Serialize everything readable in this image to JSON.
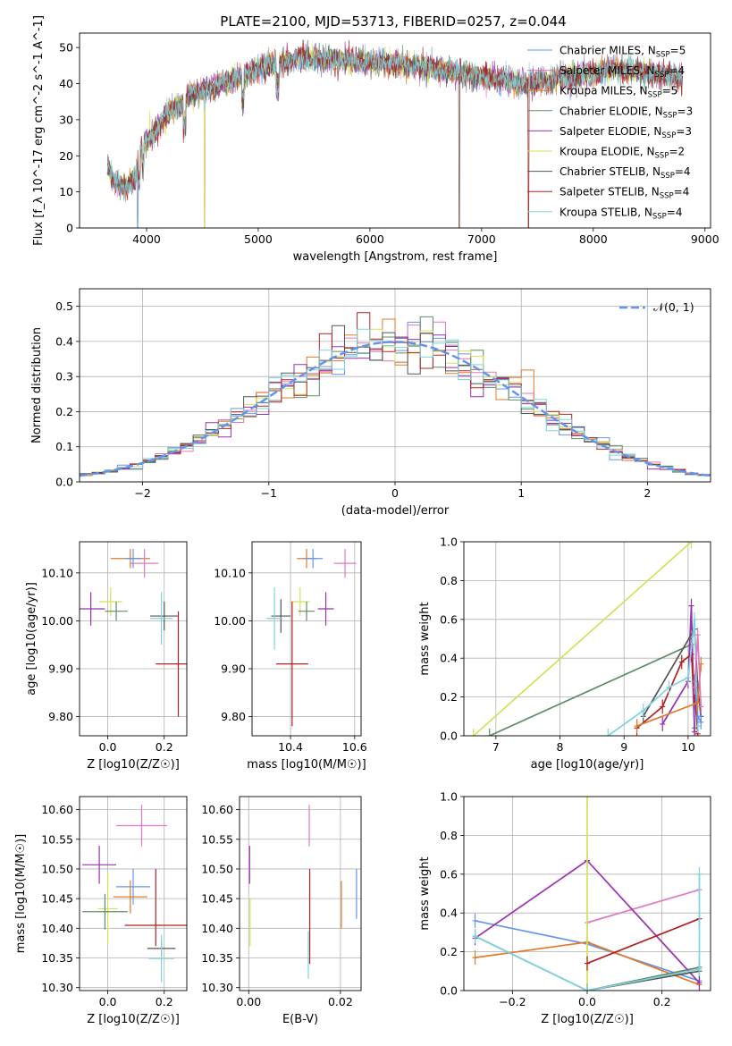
{
  "title": "PLATE=2100, MJD=53713, FIBERID=0257, z=0.044",
  "chart_data": [
    {
      "type": "line",
      "name": "spectrum",
      "xlabel": "wavelength [Angstrom, rest frame]",
      "ylabel": "Flux [f_λ 10^-17 erg cm^-2 s^-1 A^-1]",
      "xlim": [
        3400,
        9050
      ],
      "ylim": [
        0,
        54
      ],
      "xticks": [
        4000,
        5000,
        6000,
        7000,
        8000,
        9000
      ],
      "yticks": [
        0,
        10,
        20,
        30,
        40,
        50
      ],
      "legend_position": "top-right",
      "continuum": {
        "x": [
          3650,
          3700,
          3800,
          3900,
          3950,
          4000,
          4100,
          4200,
          4300,
          4400,
          4500,
          4700,
          5000,
          5200,
          5400,
          5600,
          6000,
          6400,
          6800,
          7000,
          7400,
          7800,
          8200,
          8600,
          8800
        ],
        "y": [
          18,
          13,
          11,
          14,
          22,
          24,
          28,
          32,
          34,
          37,
          38,
          40,
          44,
          46,
          47,
          46.5,
          46,
          45,
          43,
          42,
          40,
          42,
          44,
          42.5,
          41.5
        ]
      },
      "series": [
        {
          "name": "Chabrier MILES, N_SSP=5",
          "color": "#6495ed"
        },
        {
          "name": "Salpeter MILES, N_SSP=4",
          "color": "#e377c2"
        },
        {
          "name": "Kroupa MILES, N_SSP=5",
          "color": "#e07a2a"
        },
        {
          "name": "Chabrier ELODIE, N_SSP=3",
          "color": "#5e8c69"
        },
        {
          "name": "Salpeter ELODIE, N_SSP=3",
          "color": "#9b30b0"
        },
        {
          "name": "Kroupa ELODIE, N_SSP=2",
          "color": "#d4e157"
        },
        {
          "name": "Chabrier STELIB, N_SSP=4",
          "color": "#555555"
        },
        {
          "name": "Salpeter STELIB, N_SSP=4",
          "color": "#b22222"
        },
        {
          "name": "Kroupa STELIB, N_SSP=4",
          "color": "#7fd3dc"
        }
      ],
      "vertical_drops": [
        3920,
        4520,
        6800,
        7420
      ]
    },
    {
      "type": "histogram",
      "name": "residuals",
      "xlabel": "(data-model)/error",
      "ylabel": "Normed distribution",
      "xlim": [
        -2.5,
        2.5
      ],
      "ylim": [
        0,
        0.55
      ],
      "xticks": [
        -2,
        -1,
        0,
        1,
        2
      ],
      "yticks": [
        0,
        0.1,
        0.2,
        0.3,
        0.4,
        0.5
      ],
      "grid": true,
      "reference_curve": {
        "label": "𝒩(0, 1)",
        "color": "#6495ed",
        "style": "dashed"
      },
      "bin_width": 0.1
    },
    {
      "type": "scatter",
      "name": "age_vs_Z",
      "xlabel": "Z [log10(Z/Z☉)]",
      "ylabel": "age  [log10(age/yr)]",
      "xlim": [
        -0.1,
        0.28
      ],
      "ylim": [
        9.76,
        10.165
      ],
      "xticks": [
        0.0,
        0.2
      ],
      "yticks": [
        9.8,
        9.9,
        10.0,
        10.1
      ],
      "points": [
        {
          "x": 0.08,
          "y": 10.13,
          "xerr": 0.07,
          "yerr": 0.02,
          "color": "#e07a2a"
        },
        {
          "x": 0.13,
          "y": 10.12,
          "xerr": 0.05,
          "yerr": 0.03,
          "color": "#e377c2"
        },
        {
          "x": 0.09,
          "y": 10.13,
          "xerr": 0.03,
          "yerr": 0.02,
          "color": "#6495ed"
        },
        {
          "x": -0.06,
          "y": 10.025,
          "xerr": 0.05,
          "yerr": 0.035,
          "color": "#9b30b0"
        },
        {
          "x": 0.01,
          "y": 10.04,
          "xerr": 0.04,
          "yerr": 0.03,
          "color": "#d4e157"
        },
        {
          "x": 0.03,
          "y": 10.02,
          "xerr": 0.04,
          "yerr": 0.02,
          "color": "#5e8c69"
        },
        {
          "x": 0.2,
          "y": 10.01,
          "xerr": 0.05,
          "yerr": 0.03,
          "color": "#555555"
        },
        {
          "x": 0.19,
          "y": 10.005,
          "xerr": 0.04,
          "yerr": 0.055,
          "color": "#7fd3dc"
        },
        {
          "x": 0.25,
          "y": 9.91,
          "xerr": 0.08,
          "yerr": 0.11,
          "color": "#b22222"
        }
      ]
    },
    {
      "type": "scatter",
      "name": "age_vs_mass",
      "xlabel": "mass [log10(M/M☉)]",
      "ylabel": "",
      "xlim": [
        10.28,
        10.62
      ],
      "ylim": [
        9.76,
        10.165
      ],
      "xticks": [
        10.4,
        10.6
      ],
      "yticks": [
        9.8,
        9.9,
        10.0,
        10.1
      ],
      "points": [
        {
          "x": 10.45,
          "y": 10.13,
          "xerr": 0.03,
          "yerr": 0.02,
          "color": "#e07a2a"
        },
        {
          "x": 10.57,
          "y": 10.12,
          "xerr": 0.035,
          "yerr": 0.03,
          "color": "#e377c2"
        },
        {
          "x": 10.47,
          "y": 10.13,
          "xerr": 0.03,
          "yerr": 0.02,
          "color": "#6495ed"
        },
        {
          "x": 10.51,
          "y": 10.025,
          "xerr": 0.025,
          "yerr": 0.035,
          "color": "#9b30b0"
        },
        {
          "x": 10.43,
          "y": 10.04,
          "xerr": 0.03,
          "yerr": 0.03,
          "color": "#d4e157"
        },
        {
          "x": 10.45,
          "y": 10.02,
          "xerr": 0.025,
          "yerr": 0.02,
          "color": "#5e8c69"
        },
        {
          "x": 10.37,
          "y": 10.01,
          "xerr": 0.03,
          "yerr": 0.035,
          "color": "#555555"
        },
        {
          "x": 10.35,
          "y": 10.005,
          "xerr": 0.025,
          "yerr": 0.065,
          "color": "#7fd3dc"
        },
        {
          "x": 10.405,
          "y": 9.91,
          "xerr": 0.05,
          "yerr": 0.13,
          "color": "#b22222"
        }
      ]
    },
    {
      "type": "line",
      "name": "massweight_vs_age",
      "xlabel": "age  [log10(age/yr)]",
      "ylabel": "mass weight",
      "xlim": [
        6.5,
        10.35
      ],
      "ylim": [
        0,
        1
      ],
      "xticks": [
        7,
        8,
        9,
        10
      ],
      "yticks": [
        0.0,
        0.2,
        0.4,
        0.6,
        0.8,
        1.0
      ],
      "grid": true,
      "series": [
        {
          "color": "#d4e157",
          "x": [
            6.65,
            10.05
          ],
          "y": [
            0.0,
            1.0
          ]
        },
        {
          "color": "#5e8c69",
          "x": [
            6.9,
            10.05,
            10.1
          ],
          "y": [
            0.0,
            0.47,
            0.04
          ]
        },
        {
          "color": "#9b30b0",
          "x": [
            9.6,
            10.0,
            10.05,
            10.1
          ],
          "y": [
            0.06,
            0.28,
            0.67,
            0.02
          ]
        },
        {
          "color": "#b22222",
          "x": [
            9.2,
            9.6,
            9.9,
            10.05,
            10.15
          ],
          "y": [
            0.04,
            0.15,
            0.38,
            0.42,
            0.01
          ]
        },
        {
          "color": "#555555",
          "x": [
            9.3,
            10.1,
            10.15,
            10.2
          ],
          "y": [
            0.1,
            0.55,
            0.25,
            0.1
          ]
        },
        {
          "color": "#7fd3dc",
          "x": [
            8.75,
            9.3,
            9.7,
            10.0,
            10.1,
            10.15
          ],
          "y": [
            0.0,
            0.13,
            0.25,
            0.3,
            0.6,
            0.05
          ]
        },
        {
          "color": "#6495ed",
          "x": [
            10.1,
            10.15,
            10.2
          ],
          "y": [
            0.28,
            0.1,
            0.07
          ]
        },
        {
          "color": "#e07a2a",
          "x": [
            9.2,
            10.15,
            10.2
          ],
          "y": [
            0.05,
            0.17,
            0.37
          ]
        },
        {
          "color": "#e377c2",
          "x": [
            10.1,
            10.15,
            10.2
          ],
          "y": [
            0.25,
            0.52,
            0.15
          ]
        }
      ]
    },
    {
      "type": "scatter",
      "name": "mass_vs_Z",
      "xlabel": "Z [log10(Z/Z☉)]",
      "ylabel": "mass [log10(M/M☉)]",
      "xlim": [
        -0.1,
        0.28
      ],
      "ylim": [
        10.295,
        10.622
      ],
      "xticks": [
        0.0,
        0.2
      ],
      "yticks": [
        10.3,
        10.35,
        10.4,
        10.45,
        10.5,
        10.55,
        10.6
      ],
      "points": [
        {
          "x": 0.12,
          "y": 10.573,
          "xerr": 0.09,
          "yerr": 0.035,
          "color": "#e377c2"
        },
        {
          "x": -0.03,
          "y": 10.507,
          "xerr": 0.06,
          "yerr": 0.032,
          "color": "#9b30b0"
        },
        {
          "x": 0.09,
          "y": 10.47,
          "xerr": 0.06,
          "yerr": 0.03,
          "color": "#6495ed"
        },
        {
          "x": 0.08,
          "y": 10.453,
          "xerr": 0.06,
          "yerr": 0.028,
          "color": "#e07a2a"
        },
        {
          "x": 0.0,
          "y": 10.433,
          "xerr": 0.035,
          "yerr": 0.06,
          "color": "#d4e157"
        },
        {
          "x": -0.01,
          "y": 10.428,
          "xerr": 0.08,
          "yerr": 0.03,
          "color": "#5e8c69"
        },
        {
          "x": 0.17,
          "y": 10.405,
          "xerr": 0.11,
          "yerr": 0.0,
          "color": "#b22222",
          "yerr_up": 0.095,
          "yerr_down": 0.035
        },
        {
          "x": 0.19,
          "y": 10.366,
          "xerr": 0.05,
          "yerr": 0.012,
          "color": "#555555"
        },
        {
          "x": 0.19,
          "y": 10.349,
          "xerr": 0.045,
          "yerr": 0.04,
          "color": "#7fd3dc"
        }
      ]
    },
    {
      "type": "scatter",
      "name": "mass_vs_EBV",
      "xlabel": "E(B-V)",
      "ylabel": "",
      "xlim": [
        -0.002,
        0.0245
      ],
      "ylim": [
        10.295,
        10.622
      ],
      "xticks": [
        0.0,
        0.02
      ],
      "yticks": [
        10.3,
        10.35,
        10.4,
        10.45,
        10.5,
        10.55,
        10.6
      ],
      "points": [
        {
          "x": 0.0132,
          "y": 10.573,
          "yerr": 0.035,
          "color": "#e377c2"
        },
        {
          "x": 0.0002,
          "y": 10.507,
          "yerr": 0.032,
          "color": "#9b30b0"
        },
        {
          "x": 0.0235,
          "y": 10.458,
          "yerr": 0.042,
          "color": "#6495ed"
        },
        {
          "x": 0.0202,
          "y": 10.44,
          "yerr": 0.04,
          "color": "#e07a2a"
        },
        {
          "x": 0.0003,
          "y": 10.41,
          "yerr": 0.04,
          "color": "#d4e157"
        },
        {
          "x": 0.0133,
          "y": 10.42,
          "yerr": 0.08,
          "color": "#b22222"
        },
        {
          "x": 0.013,
          "y": 10.355,
          "yerr": 0.04,
          "color": "#7fd3dc"
        }
      ]
    },
    {
      "type": "line",
      "name": "massweight_vs_Z",
      "xlabel": "Z [log10(Z/Z☉)]",
      "ylabel": "mass weight",
      "xlim": [
        -0.33,
        0.33
      ],
      "ylim": [
        0,
        1
      ],
      "xticks": [
        -0.2,
        0.0,
        0.2
      ],
      "yticks": [
        0.0,
        0.2,
        0.4,
        0.6,
        0.8,
        1.0
      ],
      "grid": true,
      "series": [
        {
          "color": "#6495ed",
          "x": [
            -0.3,
            0.0,
            0.3
          ],
          "y": [
            0.36,
            0.24,
            0.05
          ]
        },
        {
          "color": "#e377c2",
          "x": [
            0.0,
            0.3
          ],
          "y": [
            0.35,
            0.52
          ]
        },
        {
          "color": "#e07a2a",
          "x": [
            -0.3,
            0.0,
            0.3
          ],
          "y": [
            0.17,
            0.25,
            0.03
          ]
        },
        {
          "color": "#5e8c69",
          "x": [
            -0.3,
            0.0,
            0.3
          ],
          "y": [
            0.28,
            0.0,
            0.12
          ]
        },
        {
          "color": "#9b30b0",
          "x": [
            -0.3,
            0.0,
            0.3
          ],
          "y": [
            0.27,
            0.67,
            0.04
          ]
        },
        {
          "color": "#d4e157",
          "x": [
            0.0,
            0.0
          ],
          "y": [
            0.0,
            1.0
          ]
        },
        {
          "color": "#555555",
          "x": [
            0.0,
            0.3
          ],
          "y": [
            0.0,
            0.1
          ]
        },
        {
          "color": "#b22222",
          "x": [
            0.0,
            0.3
          ],
          "y": [
            0.14,
            0.37
          ]
        },
        {
          "color": "#7fd3dc",
          "x": [
            -0.3,
            0.0,
            0.3,
            0.3
          ],
          "y": [
            0.28,
            0.0,
            0.11,
            0.6
          ]
        }
      ]
    }
  ]
}
